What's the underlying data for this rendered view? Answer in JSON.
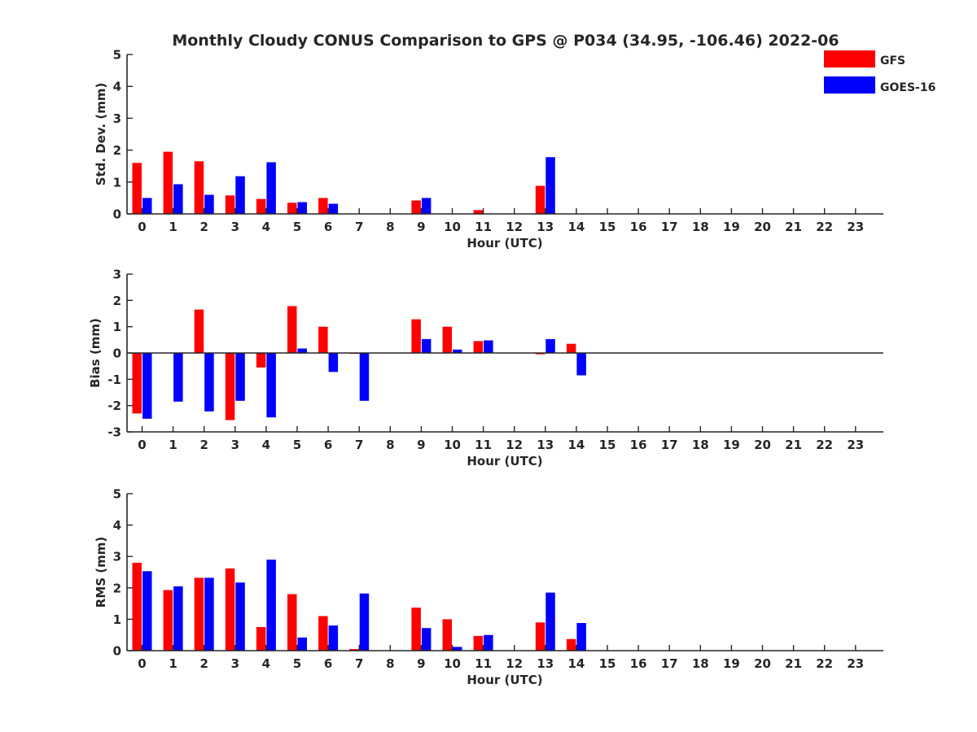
{
  "title": "Monthly Cloudy CONUS Comparison to GPS @ P034 (34.95, -106.46) 2022-06",
  "legend": {
    "placement": "top-right",
    "entries": [
      {
        "label": "GFS",
        "color": "#ff0000"
      },
      {
        "label": "GOES-16",
        "color": "#0000ff"
      }
    ]
  },
  "chart_data": [
    {
      "type": "bar",
      "xlabel": "Hour (UTC)",
      "ylabel": "Std. Dev. (mm)",
      "ylim": [
        0,
        5
      ],
      "yticks": [
        0,
        1,
        2,
        3,
        4,
        5
      ],
      "categories": [
        "0",
        "1",
        "2",
        "3",
        "4",
        "5",
        "6",
        "7",
        "8",
        "9",
        "10",
        "11",
        "12",
        "13",
        "14",
        "15",
        "16",
        "17",
        "18",
        "19",
        "20",
        "21",
        "22",
        "23"
      ],
      "series": [
        {
          "name": "GFS",
          "color": "#ff0000",
          "values": [
            1.6,
            1.95,
            1.65,
            0.58,
            0.47,
            0.35,
            0.5,
            0,
            0,
            0.42,
            0,
            0.12,
            0,
            0.88,
            0,
            0,
            0,
            0,
            0,
            0,
            0,
            0,
            0,
            0
          ]
        },
        {
          "name": "GOES-16",
          "color": "#0000ff",
          "values": [
            0.5,
            0.93,
            0.6,
            1.18,
            1.62,
            0.37,
            0.32,
            0,
            0,
            0.5,
            0,
            0,
            0,
            1.78,
            0,
            0,
            0,
            0,
            0,
            0,
            0,
            0,
            0,
            0
          ]
        }
      ]
    },
    {
      "type": "bar",
      "xlabel": "Hour (UTC)",
      "ylabel": "Bias (mm)",
      "ylim": [
        -3,
        3
      ],
      "yticks": [
        -3,
        -2,
        -1,
        0,
        1,
        2,
        3
      ],
      "zero_line": true,
      "categories": [
        "0",
        "1",
        "2",
        "3",
        "4",
        "5",
        "6",
        "7",
        "8",
        "9",
        "10",
        "11",
        "12",
        "13",
        "14",
        "15",
        "16",
        "17",
        "18",
        "19",
        "20",
        "21",
        "22",
        "23"
      ],
      "series": [
        {
          "name": "GFS",
          "color": "#ff0000",
          "values": [
            -2.3,
            -0.02,
            1.65,
            -2.55,
            -0.55,
            1.78,
            1.0,
            -0.03,
            0,
            1.28,
            1.0,
            0.45,
            0,
            -0.05,
            0.35,
            0,
            0,
            0,
            0,
            0,
            0,
            0,
            0,
            0
          ]
        },
        {
          "name": "GOES-16",
          "color": "#0000ff",
          "values": [
            -2.5,
            -1.85,
            -2.22,
            -1.82,
            -2.45,
            0.17,
            -0.72,
            -1.82,
            0,
            0.53,
            0.13,
            0.48,
            0,
            0.53,
            -0.85,
            0,
            0,
            0,
            0,
            0,
            0,
            0,
            0,
            0
          ]
        }
      ]
    },
    {
      "type": "bar",
      "xlabel": "Hour (UTC)",
      "ylabel": "RMS (mm)",
      "ylim": [
        0,
        5
      ],
      "yticks": [
        0,
        1,
        2,
        3,
        4,
        5
      ],
      "categories": [
        "0",
        "1",
        "2",
        "3",
        "4",
        "5",
        "6",
        "7",
        "8",
        "9",
        "10",
        "11",
        "12",
        "13",
        "14",
        "15",
        "16",
        "17",
        "18",
        "19",
        "20",
        "21",
        "22",
        "23"
      ],
      "series": [
        {
          "name": "GFS",
          "color": "#ff0000",
          "values": [
            2.8,
            1.93,
            2.32,
            2.62,
            0.75,
            1.8,
            1.1,
            0.05,
            0,
            1.37,
            1.0,
            0.47,
            0,
            0.9,
            0.37,
            0,
            0,
            0,
            0,
            0,
            0,
            0,
            0,
            0
          ]
        },
        {
          "name": "GOES-16",
          "color": "#0000ff",
          "values": [
            2.53,
            2.05,
            2.32,
            2.17,
            2.9,
            0.42,
            0.8,
            1.82,
            0,
            0.72,
            0.12,
            0.5,
            0,
            1.85,
            0.88,
            0,
            0,
            0,
            0,
            0,
            0,
            0,
            0,
            0
          ]
        }
      ]
    }
  ]
}
